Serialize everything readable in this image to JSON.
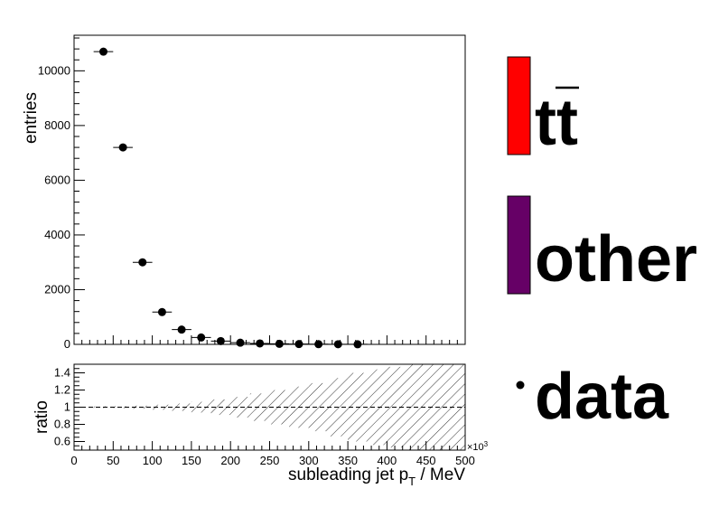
{
  "chart_data": {
    "type": "scatter",
    "main": {
      "ylabel": "entries",
      "ylim": [
        0,
        11300
      ],
      "yticks": [
        0,
        2000,
        4000,
        6000,
        8000,
        10000
      ],
      "points": [
        {
          "x": 37.5,
          "y": 10700,
          "xerr": 12.5,
          "yerr": 103
        },
        {
          "x": 62.5,
          "y": 7200,
          "xerr": 12.5,
          "yerr": 85
        },
        {
          "x": 87.5,
          "y": 3000,
          "xerr": 12.5,
          "yerr": 55
        },
        {
          "x": 112.5,
          "y": 1180,
          "xerr": 12.5,
          "yerr": 34
        },
        {
          "x": 137.5,
          "y": 540,
          "xerr": 12.5,
          "yerr": 23
        },
        {
          "x": 162.5,
          "y": 250,
          "xerr": 12.5,
          "yerr": 16
        },
        {
          "x": 187.5,
          "y": 120,
          "xerr": 12.5,
          "yerr": 11
        },
        {
          "x": 212.5,
          "y": 60,
          "xerr": 12.5,
          "yerr": 8
        },
        {
          "x": 237.5,
          "y": 35,
          "xerr": 12.5,
          "yerr": 6
        },
        {
          "x": 262.5,
          "y": 20,
          "xerr": 12.5,
          "yerr": 4
        },
        {
          "x": 287.5,
          "y": 12,
          "xerr": 12.5,
          "yerr": 3
        },
        {
          "x": 312.5,
          "y": 8,
          "xerr": 12.5,
          "yerr": 3
        },
        {
          "x": 337.5,
          "y": 5,
          "xerr": 12.5,
          "yerr": 2
        },
        {
          "x": 362.5,
          "y": 3,
          "xerr": 12.5,
          "yerr": 2
        }
      ]
    },
    "ratio": {
      "ylabel": "ratio",
      "ylim": [
        0.5,
        1.5
      ],
      "yticks": [
        0.6,
        0.8,
        1,
        1.2,
        1.4
      ],
      "ytick_labels": [
        "0.6",
        "0.8",
        "1",
        "1.2",
        "1.4"
      ],
      "reference_line": 1,
      "uncertainty_band": [
        {
          "x0": 0,
          "x1": 25,
          "half": 0
        },
        {
          "x0": 25,
          "x1": 50,
          "half": 0.01
        },
        {
          "x0": 50,
          "x1": 75,
          "half": 0.012
        },
        {
          "x0": 75,
          "x1": 100,
          "half": 0.018
        },
        {
          "x0": 100,
          "x1": 125,
          "half": 0.029
        },
        {
          "x0": 125,
          "x1": 150,
          "half": 0.043
        },
        {
          "x0": 150,
          "x1": 175,
          "half": 0.063
        },
        {
          "x0": 175,
          "x1": 200,
          "half": 0.09
        },
        {
          "x0": 200,
          "x1": 225,
          "half": 0.12
        },
        {
          "x0": 225,
          "x1": 250,
          "half": 0.16
        },
        {
          "x0": 250,
          "x1": 275,
          "half": 0.2
        },
        {
          "x0": 275,
          "x1": 300,
          "half": 0.24
        },
        {
          "x0": 300,
          "x1": 325,
          "half": 0.28
        },
        {
          "x0": 325,
          "x1": 350,
          "half": 0.34
        },
        {
          "x0": 350,
          "x1": 375,
          "half": 0.4
        },
        {
          "x0": 375,
          "x1": 400,
          "half": 0.44
        },
        {
          "x0": 400,
          "x1": 425,
          "half": 0.47
        },
        {
          "x0": 425,
          "x1": 500,
          "half": 0.5
        }
      ]
    },
    "xaxis": {
      "xlabel_main": "subleading jet p",
      "xlabel_sub": "T",
      "xlabel_unit": " / MeV",
      "xlim": [
        0,
        500
      ],
      "xticks": [
        0,
        50,
        100,
        150,
        200,
        250,
        300,
        350,
        400,
        450,
        500
      ],
      "exponent_base": "×10",
      "exponent_power": "3"
    },
    "legend": {
      "placement": "right",
      "entries": [
        {
          "label": "tt",
          "overline": true,
          "style": "box",
          "color": "#ff0000"
        },
        {
          "label": "other",
          "overline": false,
          "style": "box",
          "color": "#660066"
        },
        {
          "label": "data",
          "overline": false,
          "style": "marker",
          "color": "#000000"
        }
      ]
    }
  }
}
